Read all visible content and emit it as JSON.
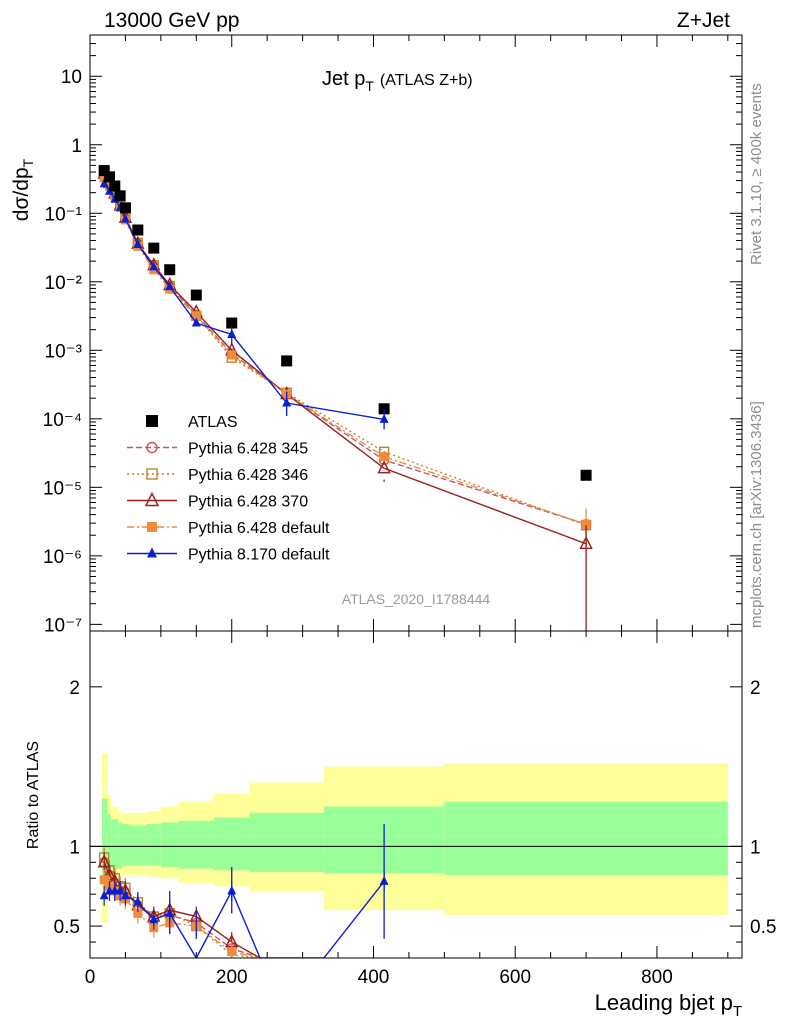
{
  "header": {
    "energy": "13000 GeV pp",
    "process": "Z+Jet",
    "rivet": "Rivet 3.1.10, ≥ 400k events",
    "source": "mcplots.cern.ch [arXiv:1306.3436]",
    "analysis_id": "ATLAS_2020_I1788444"
  },
  "chart_data": [
    {
      "type": "line",
      "title": "Jet p",
      "title_sub": "T",
      "title_note": "(ATLAS Z+b)",
      "ylabel": "dσ/dp",
      "ylabel_sub": "T",
      "yscale": "log",
      "ylim": [
        8e-08,
        40
      ],
      "xlim": [
        0,
        920
      ],
      "y_tick_labels": [
        "10",
        "1",
        "10⁻¹",
        "10⁻²",
        "10⁻³",
        "10⁻⁴",
        "10⁻⁵",
        "10⁻⁶",
        "10⁻⁷"
      ],
      "y_tick_values": [
        10,
        1,
        0.1,
        0.01,
        0.001,
        0.0001,
        1e-05,
        1e-06,
        1e-07
      ],
      "legend_placement": "bottom-left",
      "series": [
        {
          "name": "ATLAS",
          "color": "#000000",
          "marker": "square",
          "x": [
            20,
            27.5,
            35,
            42.5,
            50,
            67.5,
            90,
            112.5,
            150,
            200,
            277.5,
            415,
            700
          ],
          "y": [
            0.42,
            0.34,
            0.25,
            0.18,
            0.12,
            0.057,
            0.031,
            0.015,
            0.0064,
            0.0025,
            0.0007,
            0.00014,
            1.5e-05
          ]
        },
        {
          "name": "Pythia 6.428 345",
          "color": "#c05a66",
          "dash": "6,3",
          "marker": "open-circle",
          "x": [
            20,
            27.5,
            35,
            42.5,
            50,
            67.5,
            90,
            112.5,
            150,
            200,
            277.5,
            415,
            700
          ],
          "y": [
            0.38,
            0.28,
            0.19,
            0.13,
            0.085,
            0.036,
            0.017,
            0.0085,
            0.0033,
            0.0009,
            0.00023,
            2.5e-05,
            2.9e-06
          ]
        },
        {
          "name": "Pythia 6.428 346",
          "color": "#b8862b",
          "dash": "2,3",
          "marker": "open-square",
          "x": [
            20,
            27.5,
            35,
            42.5,
            50,
            67.5,
            90,
            112.5,
            150,
            200,
            277.5,
            415,
            700
          ],
          "y": [
            0.39,
            0.29,
            0.2,
            0.135,
            0.088,
            0.037,
            0.0175,
            0.0087,
            0.0032,
            0.00078,
            0.00024,
            3.3e-05,
            2.8e-06
          ]
        },
        {
          "name": "Pythia 6.428 370",
          "color": "#9b1c1c",
          "dash": "",
          "marker": "open-triangle",
          "x": [
            20,
            27.5,
            35,
            42.5,
            50,
            67.5,
            90,
            112.5,
            150,
            200,
            277.5,
            415,
            700
          ],
          "y": [
            0.38,
            0.28,
            0.195,
            0.13,
            0.086,
            0.036,
            0.0175,
            0.009,
            0.0036,
            0.001,
            0.00023,
            1.9e-05,
            1.5e-06
          ]
        },
        {
          "name": "Pythia 6.428 default",
          "color": "#f08a3c",
          "dash": "7,3,2,3",
          "marker": "square",
          "x": [
            20,
            27.5,
            35,
            42.5,
            50,
            67.5,
            90,
            112.5,
            150,
            200,
            277.5,
            415,
            700
          ],
          "y": [
            0.33,
            0.25,
            0.18,
            0.125,
            0.08,
            0.033,
            0.015,
            0.0078,
            0.0032,
            0.00085,
            0.00023,
            2.8e-05,
            2.9e-06
          ]
        },
        {
          "name": "Pythia 8.170 default",
          "color": "#0a1fd1",
          "dash": "",
          "marker": "triangle",
          "x": [
            20,
            27.5,
            35,
            42.5,
            50,
            67.5,
            90,
            112.5,
            150,
            200,
            277.5,
            415
          ],
          "y": [
            0.27,
            0.21,
            0.16,
            0.12,
            0.082,
            0.035,
            0.0165,
            0.0085,
            0.0025,
            0.0017,
            0.00017,
            9.8e-05
          ]
        }
      ]
    },
    {
      "type": "line",
      "ylabel": "Ratio to ATLAS",
      "xlabel": "Leading bjet p",
      "xlabel_sub": "T",
      "ylim": [
        0.3,
        2.35
      ],
      "xlim": [
        0,
        920
      ],
      "x_tick_labels": [
        "0",
        "200",
        "400",
        "600",
        "800"
      ],
      "x_tick_values": [
        0,
        200,
        400,
        600,
        800
      ],
      "y_tick_labels": [
        "0.5",
        "1",
        "2"
      ],
      "y_tick_values": [
        0.5,
        1,
        2
      ],
      "bands": {
        "edges": [
          17,
          25,
          30,
          40,
          45,
          55,
          80,
          100,
          125,
          175,
          225,
          330,
          500,
          900
        ],
        "green_low": [
          0.78,
          0.86,
          0.86,
          0.86,
          0.88,
          0.88,
          0.88,
          0.87,
          0.86,
          0.85,
          0.84,
          0.83,
          0.82
        ],
        "green_high": [
          1.3,
          1.2,
          1.17,
          1.15,
          1.14,
          1.13,
          1.14,
          1.15,
          1.16,
          1.18,
          1.21,
          1.25,
          1.28
        ],
        "yellow_low": [
          0.52,
          0.79,
          0.8,
          0.81,
          0.82,
          0.82,
          0.81,
          0.8,
          0.77,
          0.75,
          0.72,
          0.6,
          0.57
        ],
        "yellow_high": [
          1.58,
          1.32,
          1.25,
          1.22,
          1.21,
          1.21,
          1.22,
          1.25,
          1.28,
          1.33,
          1.4,
          1.5,
          1.52
        ]
      },
      "series": [
        {
          "name": "Pythia 6.428 345",
          "color": "#c05a66",
          "dash": "6,3",
          "marker": "open-circle",
          "x": [
            20,
            27.5,
            35,
            42.5,
            50,
            67.5,
            90,
            112.5,
            150,
            200,
            240
          ],
          "y": [
            0.9,
            0.82,
            0.77,
            0.72,
            0.71,
            0.63,
            0.55,
            0.57,
            0.52,
            0.36,
            0.3
          ]
        },
        {
          "name": "Pythia 6.428 346",
          "color": "#b8862b",
          "dash": "2,3",
          "marker": "open-square",
          "x": [
            20,
            27.5,
            35,
            42.5,
            50,
            67.5,
            90,
            112.5,
            150,
            200,
            240
          ],
          "y": [
            0.93,
            0.85,
            0.8,
            0.75,
            0.74,
            0.65,
            0.56,
            0.58,
            0.5,
            0.32,
            0.3
          ]
        },
        {
          "name": "Pythia 6.428 370",
          "color": "#9b1c1c",
          "dash": "",
          "marker": "open-triangle",
          "x": [
            20,
            27.5,
            35,
            42.5,
            50,
            67.5,
            90,
            112.5,
            150,
            200,
            240
          ],
          "y": [
            0.9,
            0.82,
            0.78,
            0.72,
            0.72,
            0.63,
            0.56,
            0.6,
            0.56,
            0.4,
            0.3
          ]
        },
        {
          "name": "Pythia 6.428 default",
          "color": "#f08a3c",
          "dash": "7,3,2,3",
          "marker": "square",
          "x": [
            20,
            27.5,
            35,
            42.5,
            50,
            67.5,
            90,
            112.5,
            150,
            200,
            240
          ],
          "y": [
            0.79,
            0.75,
            0.72,
            0.69,
            0.67,
            0.58,
            0.49,
            0.52,
            0.5,
            0.34,
            0.3
          ]
        },
        {
          "name": "Pythia 8.170 default",
          "color": "#0a1fd1",
          "dash": "",
          "marker": "triangle",
          "x": [
            20,
            27.5,
            35,
            42.5,
            50,
            67.5,
            90,
            112.5,
            150,
            200,
            240,
            330,
            415
          ],
          "y": [
            0.69,
            0.72,
            0.72,
            0.72,
            0.69,
            0.65,
            0.54,
            0.58,
            0.3,
            0.72,
            0.3,
            0.3,
            0.78
          ]
        }
      ]
    }
  ]
}
